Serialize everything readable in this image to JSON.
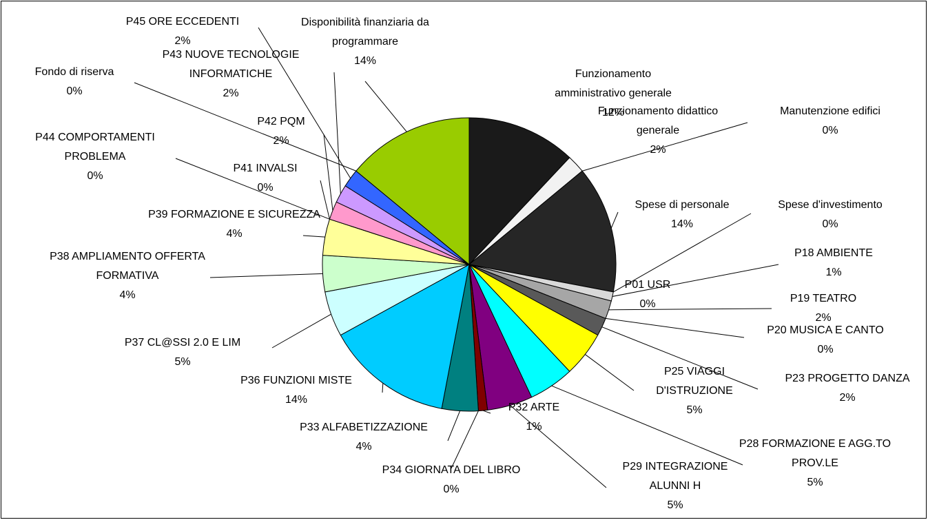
{
  "chart_data": {
    "type": "pie",
    "categories": [
      "Funzionamento amministrativo generale",
      "Funzionamento didattico generale",
      "Manutenzione edifici",
      "Spese di personale",
      "Spese d'investimento",
      "P01 USR",
      "P18 AMBIENTE",
      "P19 TEATRO",
      "P20 MUSICA E CANTO",
      "P23 PROGETTO DANZA",
      "P25 VIAGGI D'ISTRUZIONE",
      "P28 FORMAZIONE E AGG.TO PROV.LE",
      "P29 INTEGRAZIONE ALUNNI H",
      "P32 ARTE",
      "P34 GIORNATA DEL LIBRO",
      "P33 ALFABETIZZAZIONE",
      "P36 FUNZIONI MISTE",
      "P37 CL@SSI 2.0 E LIM",
      "P38 AMPLIAMENTO OFFERTA FORMATIVA",
      "P39 FORMAZIONE E SICUREZZA",
      "P41 INVALSI",
      "P44 COMPORTAMENTI PROBLEMA",
      "P42 PQM",
      "P43 NUOVE TECNOLOGIE INFORMATICHE",
      "P45 ORE ECCEDENTI",
      "Fondo di riserva",
      "Disponibilità finanziaria da programmare"
    ],
    "values": [
      12,
      2,
      0,
      14,
      0,
      0,
      1,
      2,
      0,
      2,
      5,
      5,
      5,
      1,
      0,
      4,
      14,
      5,
      4,
      4,
      0,
      0,
      2,
      2,
      2,
      0,
      14
    ],
    "value_labels": [
      "12%",
      "2%",
      "0%",
      "14%",
      "0%",
      "0%",
      "1%",
      "2%",
      "0%",
      "2%",
      "5%",
      "5%",
      "5%",
      "1%",
      "0%",
      "4%",
      "14%",
      "5%",
      "4%",
      "4%",
      "0%",
      "0%",
      "2%",
      "2%",
      "2%",
      "0%",
      "14%"
    ],
    "colors": [
      "#1a1a1a",
      "#f2f2f2",
      "#ffffff",
      "#262626",
      "#ffffff",
      "#ffffff",
      "#d9d9d9",
      "#a6a6a6",
      "#ffffff",
      "#595959",
      "#ffff00",
      "#00ffff",
      "#800080",
      "#800000",
      "#ffffff",
      "#008080",
      "#00ccff",
      "#ccffff",
      "#ccffcc",
      "#ffff99",
      "#ffffff",
      "#ffffff",
      "#ff99cc",
      "#cc99ff",
      "#3366ff",
      "#ffffff",
      "#99cc00"
    ]
  }
}
